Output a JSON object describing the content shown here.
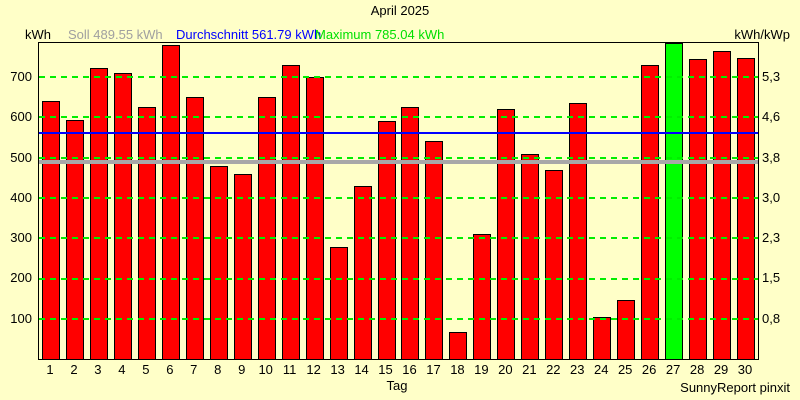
{
  "title": "April 2025",
  "legend": {
    "unit_left": "kWh",
    "soll_label": "Soll 489.55 kWh",
    "durchschnitt_label": "Durchschnitt 561.79 kWh",
    "maximum_label": "Maximum 785.04 kWh",
    "unit_right": "kWh/kWp"
  },
  "footer": {
    "xlabel": "Tag",
    "credit": "SunnyReport pinxit"
  },
  "colors": {
    "background": "#FFFFC8",
    "bar": "#FF0000",
    "max_bar": "#00FF00",
    "grid": "#00EE00",
    "soll_line": "#A8A8A8",
    "durchschnitt_line": "#0000FF",
    "soll_text": "#A0A0A0",
    "maximum_text": "#00E000",
    "axis": "#000000"
  },
  "chart_data": {
    "type": "bar",
    "title": "April 2025",
    "xlabel": "Tag",
    "ylabel_left": "kWh",
    "ylabel_right": "kWh/kWp",
    "ylim": [
      0,
      785.04
    ],
    "grid": "horizontal dashed green, drawn over bars",
    "legend_position": "top",
    "categories": [
      1,
      2,
      3,
      4,
      5,
      6,
      7,
      8,
      9,
      10,
      11,
      12,
      13,
      14,
      15,
      16,
      17,
      18,
      19,
      20,
      21,
      22,
      23,
      24,
      25,
      26,
      27,
      28,
      29,
      30
    ],
    "values": [
      641,
      593,
      722,
      710,
      626,
      781,
      652,
      480,
      459,
      652,
      730,
      700,
      278,
      431,
      592,
      626,
      542,
      66,
      310,
      621,
      509,
      470,
      636,
      104,
      147,
      731,
      785.04,
      746,
      764,
      749
    ],
    "max_day": 27,
    "maximum_value": 785.04,
    "soll_value": 489.55,
    "durchschnitt_value": 561.79,
    "yticks": [
      {
        "value": 100,
        "left_label": "100",
        "right_label": "0,8"
      },
      {
        "value": 200,
        "left_label": "200",
        "right_label": "1,5"
      },
      {
        "value": 300,
        "left_label": "300",
        "right_label": "2,3"
      },
      {
        "value": 400,
        "left_label": "400",
        "right_label": "3,0"
      },
      {
        "value": 500,
        "left_label": "500",
        "right_label": "3,8"
      },
      {
        "value": 600,
        "left_label": "600",
        "right_label": "4,6"
      },
      {
        "value": 700,
        "left_label": "700",
        "right_label": "5,3"
      }
    ]
  }
}
